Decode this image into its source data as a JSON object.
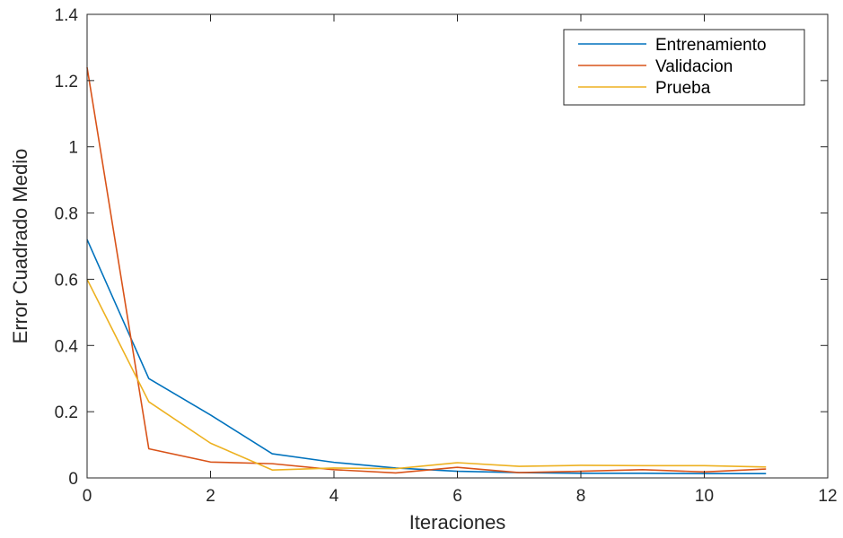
{
  "chart_data": {
    "type": "line",
    "title": "",
    "xlabel": "Iteraciones",
    "ylabel": "Error Cuadrado Medio",
    "xlim": [
      0,
      12
    ],
    "ylim": [
      0,
      1.4
    ],
    "xticks": [
      0,
      2,
      4,
      6,
      8,
      10,
      12
    ],
    "yticks": [
      0,
      0.2,
      0.4,
      0.6,
      0.8,
      1,
      1.2,
      1.4
    ],
    "xtick_labels": [
      "0",
      "2",
      "4",
      "6",
      "8",
      "10",
      "12"
    ],
    "ytick_labels": [
      "0",
      "0.2",
      "0.4",
      "0.6",
      "0.8",
      "1",
      "1.2",
      "1.4"
    ],
    "grid": false,
    "legend_position": "top-right",
    "x": [
      0,
      1,
      2,
      3,
      4,
      5,
      6,
      7,
      8,
      9,
      10,
      11
    ],
    "series": [
      {
        "name": "Entrenamiento",
        "color": "#0072BD",
        "values": [
          0.72,
          0.3,
          0.19,
          0.073,
          0.047,
          0.03,
          0.02,
          0.016,
          0.014,
          0.014,
          0.013,
          0.013
        ]
      },
      {
        "name": "Validacion",
        "color": "#D95319",
        "values": [
          1.24,
          0.088,
          0.048,
          0.043,
          0.025,
          0.015,
          0.032,
          0.016,
          0.02,
          0.025,
          0.018,
          0.027
        ]
      },
      {
        "name": "Prueba",
        "color": "#EDB120",
        "values": [
          0.6,
          0.23,
          0.105,
          0.024,
          0.03,
          0.028,
          0.046,
          0.035,
          0.038,
          0.037,
          0.037,
          0.033
        ]
      }
    ]
  }
}
